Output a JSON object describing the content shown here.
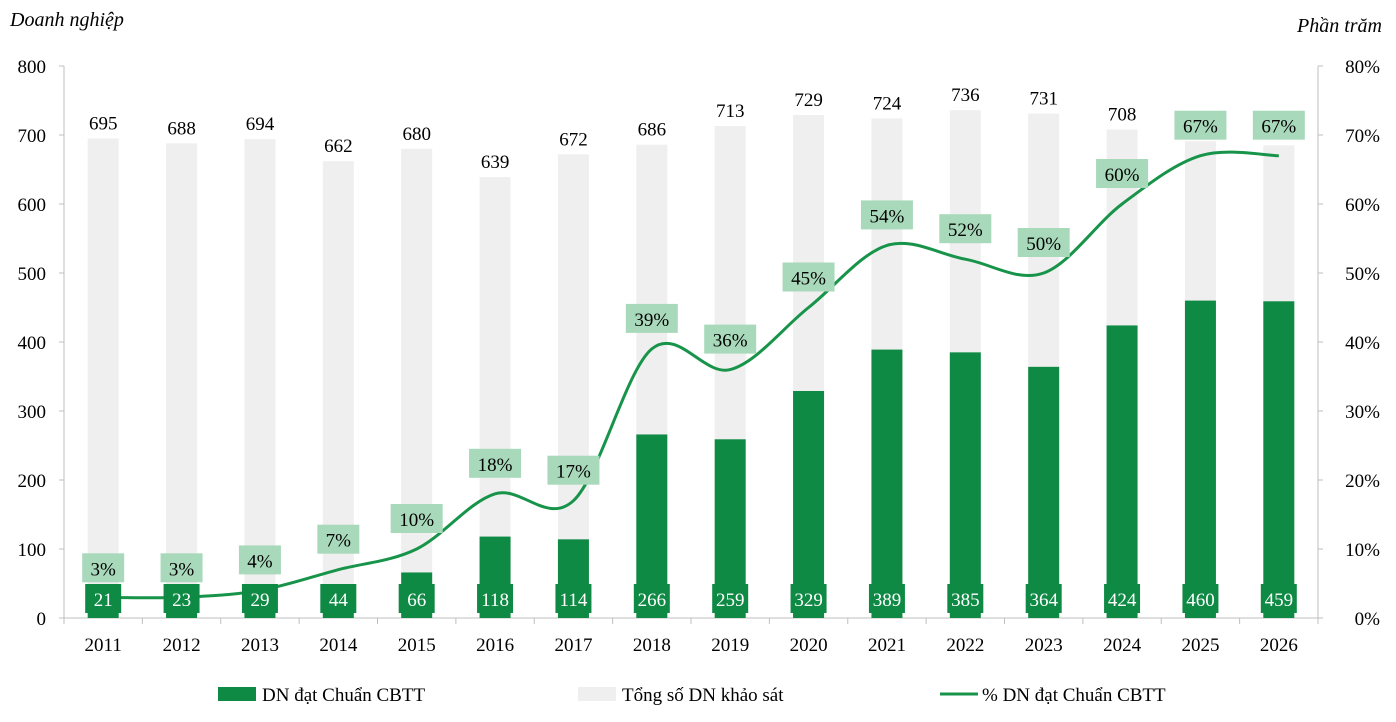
{
  "chart_data": {
    "type": "bar+line",
    "y_left_label": "Doanh nghiệp",
    "y_right_label": "Phần trăm",
    "y_left_range": [
      0,
      800
    ],
    "y_left_ticks": [
      "0",
      "100",
      "200",
      "300",
      "400",
      "500",
      "600",
      "700",
      "800"
    ],
    "y_right_range": [
      0,
      80
    ],
    "y_right_ticks": [
      "0%",
      "10%",
      "20%",
      "30%",
      "40%",
      "50%",
      "60%",
      "70%",
      "80%"
    ],
    "categories": [
      "2011",
      "2012",
      "2013",
      "2014",
      "2015",
      "2016",
      "2017",
      "2018",
      "2019",
      "2020",
      "2021",
      "2022",
      "2023",
      "2024",
      "2025",
      "2026"
    ],
    "series": [
      {
        "name": "Tổng số DN khảo sát",
        "type": "bar",
        "axis": "left",
        "color": "#efefef",
        "values": [
          695,
          688,
          694,
          662,
          680,
          639,
          672,
          686,
          713,
          729,
          724,
          736,
          731,
          708,
          691,
          685
        ]
      },
      {
        "name": "DN đạt Chuẩn CBTT",
        "type": "bar",
        "axis": "left",
        "color": "#0f8a45",
        "values": [
          21,
          23,
          29,
          44,
          66,
          118,
          114,
          266,
          259,
          329,
          389,
          385,
          364,
          424,
          460,
          459
        ]
      },
      {
        "name": "% DN đạt Chuẩn CBTT",
        "type": "line",
        "axis": "right",
        "color": "#17944a",
        "values": [
          3,
          3,
          4,
          7,
          10,
          18,
          17,
          39,
          36,
          45,
          54,
          52,
          50,
          60,
          67,
          67
        ],
        "labels": [
          "3%",
          "3%",
          "4%",
          "7%",
          "10%",
          "18%",
          "17%",
          "39%",
          "36%",
          "45%",
          "54%",
          "52%",
          "50%",
          "60%",
          "67%",
          "67%"
        ]
      }
    ],
    "legend_position": "bottom",
    "grid": false,
    "colors": {
      "bar_green": "#0f8a45",
      "bar_grey": "#efefef",
      "line_green": "#17944a",
      "pct_label_bg": "#a9d9bb",
      "axis": "#bfbfbf"
    }
  }
}
